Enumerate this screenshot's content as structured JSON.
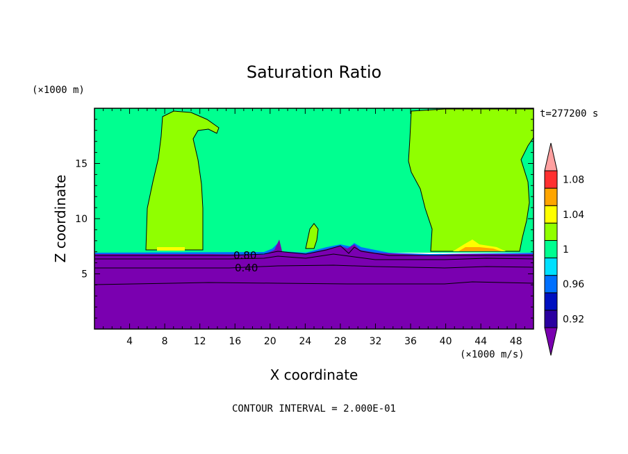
{
  "chart_data": {
    "type": "heatmap",
    "title": "Saturation Ratio",
    "xlabel": "X coordinate",
    "ylabel": "Z coordinate",
    "x_unit": "(×1000 m/s)",
    "y_unit": "(×1000 m)",
    "time_label": "t=277200 s",
    "footer": "CONTOUR INTERVAL = 2.000E-01",
    "xlim": [
      0,
      50
    ],
    "ylim": [
      0,
      20
    ],
    "xticks": [
      4,
      8,
      12,
      16,
      20,
      24,
      28,
      32,
      36,
      40,
      44,
      48
    ],
    "yticks": [
      5,
      10,
      15
    ],
    "contour_labels": [
      {
        "text": "0.80",
        "x": 17.7,
        "y": 6.6
      },
      {
        "text": "0.40",
        "x": 17.7,
        "y": 5.4
      }
    ],
    "colorbar": {
      "levels": [
        0.92,
        0.94,
        0.96,
        0.98,
        1.0,
        1.02,
        1.04,
        1.06,
        1.08,
        1.1
      ],
      "tick_labels": [
        "1.08",
        "1.04",
        "1",
        "0.96",
        "0.92"
      ],
      "colors": [
        "#7a00b0",
        "#2a00a0",
        "#0010c0",
        "#0070ff",
        "#00e0ff",
        "#00ff90",
        "#90ff00",
        "#ffff00",
        "#ffa500",
        "#ff3030",
        "#ffa0a0"
      ]
    },
    "regions": [
      {
        "name": "lower-layer",
        "value": "<0.92",
        "z_range": [
          0,
          7
        ]
      },
      {
        "name": "upper-background",
        "value": "0.98-1.00"
      },
      {
        "name": "left-plume",
        "value": "1.00-1.02",
        "x_range": [
          6,
          14
        ],
        "z_range": [
          7,
          20
        ]
      },
      {
        "name": "right-plume",
        "value": "1.00-1.02",
        "x_range": [
          38,
          50
        ],
        "z_range": [
          7,
          20
        ]
      },
      {
        "name": "small-cell",
        "value": "1.00-1.02",
        "x": 24.5,
        "z_range": [
          7,
          9.5
        ]
      }
    ]
  }
}
